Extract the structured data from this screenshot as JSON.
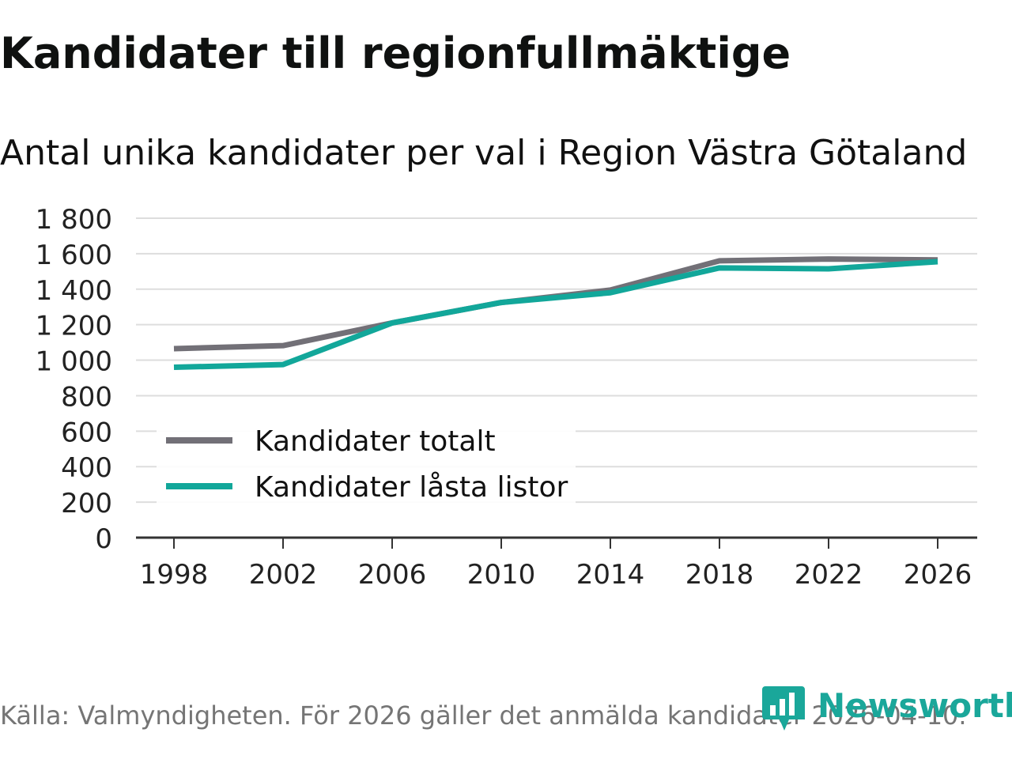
{
  "header": {
    "title": "Kandidater till regionfullmäktige",
    "subtitle": "Antal unika kandidater per val i Region Västra Götaland"
  },
  "footer": {
    "source": "Källa: Valmyndigheten. För 2026 gäller det anmälda kandidater 2026-04-10.",
    "logo_text": "Newsworthy"
  },
  "colors": {
    "series_total": "#727077",
    "series_locked": "#12a79a",
    "grid": "#dddddd",
    "axis": "#333333",
    "logo": "#1aa79a"
  },
  "chart_data": {
    "type": "line",
    "title": "Kandidater till regionfullmäktige",
    "subtitle": "Antal unika kandidater per val i Region Västra Götaland",
    "xlabel": "",
    "ylabel": "",
    "x": [
      1998,
      2002,
      2006,
      2010,
      2014,
      2018,
      2022,
      2026
    ],
    "x_tick_labels": [
      "1998",
      "2002",
      "2006",
      "2010",
      "2014",
      "2018",
      "2022",
      "2026"
    ],
    "y_ticks": [
      0,
      200,
      400,
      600,
      800,
      1000,
      1200,
      1400,
      1600,
      1800
    ],
    "y_tick_labels": [
      "0",
      "200",
      "400",
      "600",
      "800",
      "1 000",
      "1 200",
      "1 400",
      "1 600",
      "1 800"
    ],
    "ylim": [
      0,
      1800
    ],
    "grid": true,
    "legend_position": "bottom-left",
    "series": [
      {
        "name": "Kandidater totalt",
        "color": "#727077",
        "values": [
          1065,
          1082,
          1210,
          1325,
          1395,
          1560,
          1570,
          1565
        ]
      },
      {
        "name": "Kandidater låsta listor",
        "color": "#12a79a",
        "values": [
          960,
          975,
          1210,
          1325,
          1380,
          1520,
          1515,
          1555
        ]
      }
    ]
  }
}
